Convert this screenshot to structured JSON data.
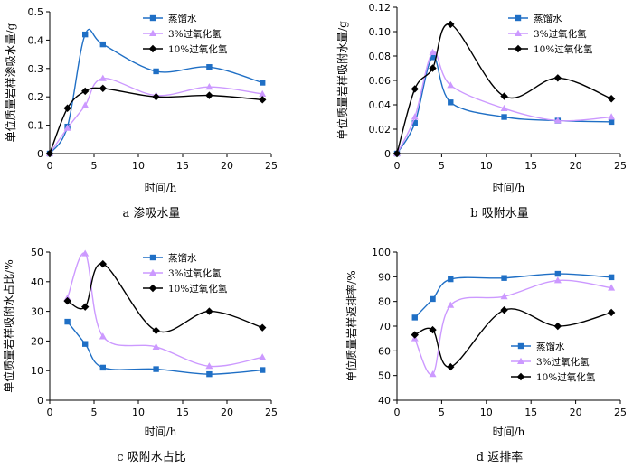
{
  "chart_data": [
    {
      "type": "line",
      "caption": "a  渗吸水量",
      "xlabel": "时间/h",
      "ylabel": "单位质量岩样渗吸水量/g",
      "xlim": [
        0,
        25
      ],
      "ylim": [
        0,
        0.5
      ],
      "xticks": [
        "0",
        "5",
        "10",
        "15",
        "20",
        "25"
      ],
      "yticks": [
        "0",
        "0.1",
        "0.2",
        "0.3",
        "0.4",
        "0.5"
      ],
      "legend_position": "top-right",
      "series": [
        {
          "name": "蒸馏水",
          "color": "#1f6fc5",
          "marker": "square",
          "x": [
            0,
            2,
            4,
            6,
            12,
            18,
            24
          ],
          "y": [
            0,
            0.095,
            0.42,
            0.385,
            0.29,
            0.305,
            0.25
          ]
        },
        {
          "name": "3%过氧化氢",
          "color": "#cc99ff",
          "marker": "triangle",
          "x": [
            0,
            2,
            4,
            6,
            12,
            18,
            24
          ],
          "y": [
            0,
            0.09,
            0.17,
            0.265,
            0.205,
            0.235,
            0.21
          ]
        },
        {
          "name": "10%过氧化氢",
          "color": "#000000",
          "marker": "diamond",
          "x": [
            0,
            2,
            4,
            6,
            12,
            18,
            24
          ],
          "y": [
            0,
            0.16,
            0.22,
            0.23,
            0.2,
            0.205,
            0.19
          ]
        }
      ]
    },
    {
      "type": "line",
      "caption": "b  吸附水量",
      "xlabel": "时间/h",
      "ylabel": "单位质量岩样吸附水量/g",
      "xlim": [
        0,
        25
      ],
      "ylim": [
        0,
        0.12
      ],
      "xticks": [
        "0",
        "5",
        "10",
        "15",
        "20",
        "25"
      ],
      "yticks": [
        "0",
        "0.02",
        "0.04",
        "0.06",
        "0.08",
        "0.10",
        "0.12"
      ],
      "legend_position": "top-right",
      "series": [
        {
          "name": "蒸馏水",
          "color": "#1f6fc5",
          "marker": "square",
          "x": [
            0,
            2,
            4,
            6,
            12,
            18,
            24
          ],
          "y": [
            0,
            0.025,
            0.079,
            0.042,
            0.03,
            0.027,
            0.026
          ]
        },
        {
          "name": "3%过氧化氢",
          "color": "#cc99ff",
          "marker": "triangle",
          "x": [
            0,
            2,
            4,
            6,
            12,
            18,
            24
          ],
          "y": [
            0,
            0.03,
            0.083,
            0.056,
            0.037,
            0.027,
            0.03
          ]
        },
        {
          "name": "10%过氧化氢",
          "color": "#000000",
          "marker": "diamond",
          "x": [
            0,
            2,
            4,
            6,
            12,
            18,
            24
          ],
          "y": [
            0,
            0.053,
            0.07,
            0.106,
            0.047,
            0.062,
            0.045
          ]
        }
      ]
    },
    {
      "type": "line",
      "caption": "c  吸附水占比",
      "xlabel": "时间/h",
      "ylabel": "单位质量岩样吸附水占比/%",
      "xlim": [
        0,
        25
      ],
      "ylim": [
        0,
        50
      ],
      "xticks": [
        "0",
        "5",
        "10",
        "15",
        "20",
        "25"
      ],
      "yticks": [
        "0",
        "10",
        "20",
        "30",
        "40",
        "50"
      ],
      "legend_position": "top-right",
      "series": [
        {
          "name": "蒸馏水",
          "color": "#1f6fc5",
          "marker": "square",
          "x": [
            2,
            4,
            6,
            12,
            18,
            24
          ],
          "y": [
            26.5,
            19,
            11,
            10.5,
            8.8,
            10.2
          ]
        },
        {
          "name": "3%过氧化氢",
          "color": "#cc99ff",
          "marker": "triangle",
          "x": [
            2,
            4,
            6,
            12,
            18,
            24
          ],
          "y": [
            34.5,
            49.5,
            21.5,
            18,
            11.5,
            14.5
          ]
        },
        {
          "name": "10%过氧化氢",
          "color": "#000000",
          "marker": "diamond",
          "x": [
            2,
            4,
            6,
            12,
            18,
            24
          ],
          "y": [
            33.5,
            31.5,
            46,
            23.5,
            30,
            24.5
          ]
        }
      ]
    },
    {
      "type": "line",
      "caption": "d  返排率",
      "xlabel": "时间/h",
      "ylabel": "单位质量岩样返排率/%",
      "xlim": [
        0,
        25
      ],
      "ylim": [
        40,
        100
      ],
      "xticks": [
        "0",
        "5",
        "10",
        "15",
        "20",
        "25"
      ],
      "yticks": [
        "40",
        "50",
        "60",
        "70",
        "80",
        "90",
        "100"
      ],
      "legend_position": "right",
      "series": [
        {
          "name": "蒸馏水",
          "color": "#1f6fc5",
          "marker": "square",
          "x": [
            2,
            4,
            6,
            12,
            18,
            24
          ],
          "y": [
            73.5,
            81,
            89,
            89.5,
            91.2,
            89.8
          ]
        },
        {
          "name": "3%过氧化氢",
          "color": "#cc99ff",
          "marker": "triangle",
          "x": [
            2,
            4,
            6,
            12,
            18,
            24
          ],
          "y": [
            65,
            50.5,
            78.5,
            82,
            88.5,
            85.5
          ]
        },
        {
          "name": "10%过氧化氢",
          "color": "#000000",
          "marker": "diamond",
          "x": [
            2,
            4,
            6,
            12,
            18,
            24
          ],
          "y": [
            66.5,
            68.5,
            53.5,
            76.5,
            70,
            75.5
          ]
        }
      ]
    }
  ]
}
